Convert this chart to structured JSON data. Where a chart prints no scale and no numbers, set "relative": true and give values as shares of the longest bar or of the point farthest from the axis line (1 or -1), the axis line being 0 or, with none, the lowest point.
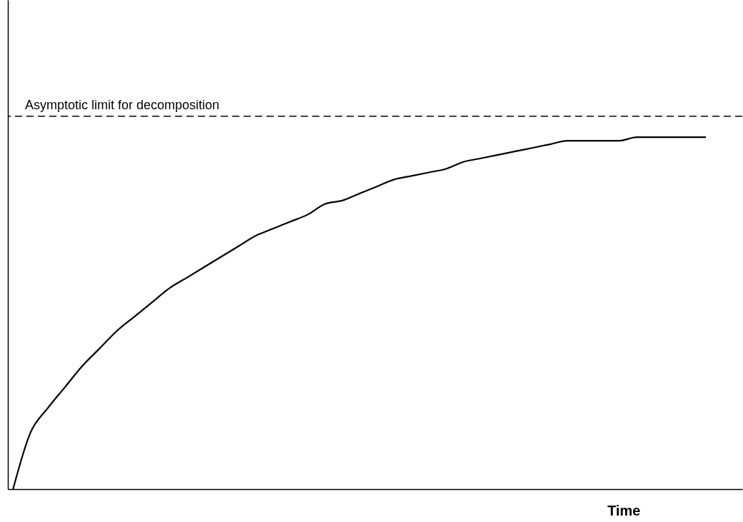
{
  "chart_data": {
    "type": "line",
    "relative": true,
    "xlabel": "Time",
    "categories": [
      null,
      null,
      null,
      null,
      null,
      null,
      null,
      null,
      null,
      null,
      null,
      null,
      null,
      null,
      null,
      null,
      null,
      null,
      null,
      null,
      null,
      null,
      null,
      null,
      null,
      null,
      null,
      null,
      null,
      null,
      null,
      null,
      null,
      null,
      null,
      null,
      null,
      null,
      null,
      null,
      null
    ],
    "series": [
      {
        "color": "#000000",
        "values": [
          0,
          0.16,
          0.23,
          0.29,
          0.35,
          0.4,
          0.45,
          0.49,
          0.53,
          0.57,
          0.6,
          0.63,
          0.66,
          0.69,
          0.72,
          0.74,
          0.76,
          0.78,
          0.81,
          0.82,
          0.84,
          0.86,
          0.88,
          0.89,
          0.9,
          0.91,
          0.93,
          0.94,
          0.95,
          0.96,
          0.97,
          0.98,
          0.99,
          0.99,
          0.99,
          0.99,
          1,
          1,
          1,
          1,
          1
        ]
      }
    ],
    "ref_lines": [
      {
        "axis": "y",
        "value": 1.06,
        "label": "Asymptotic limit for decomposition",
        "color": "#000000",
        "line_style": "dashed"
      }
    ],
    "grid": false,
    "legend": false
  }
}
